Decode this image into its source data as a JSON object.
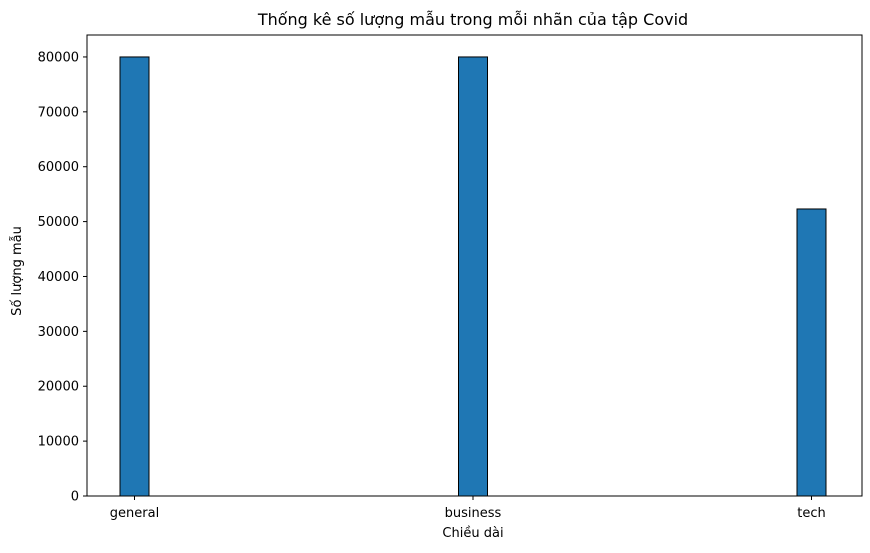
{
  "chart_data": {
    "type": "bar",
    "title": "Thống kê số lượng mẫu trong mỗi nhãn của tập Covid",
    "xlabel": "Chiều dài",
    "ylabel": "Số lượng mẫu",
    "categories": [
      "general",
      "business",
      "tech"
    ],
    "values": [
      80000,
      80000,
      52300
    ],
    "ylim": [
      0,
      84000
    ],
    "yticks": [
      0,
      10000,
      20000,
      30000,
      40000,
      50000,
      60000,
      70000,
      80000
    ],
    "grid": false,
    "bar_color": "#1f77b4",
    "edge_color": "#000000"
  }
}
